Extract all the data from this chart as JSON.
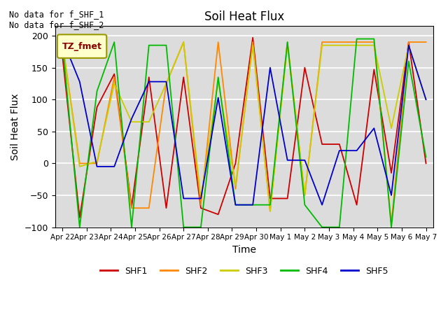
{
  "title": "Soil Heat Flux",
  "xlabel": "Time",
  "ylabel": "Soil Heat Flux",
  "ylim": [
    -100,
    215
  ],
  "yticks": [
    -100,
    -50,
    0,
    50,
    100,
    150,
    200
  ],
  "background_color": "#dcdcdc",
  "annotation_text": "No data for f_SHF_1\nNo data for f_SHF_2",
  "legend_label": "TZ_fmet",
  "series_labels": [
    "SHF1",
    "SHF2",
    "SHF3",
    "SHF4",
    "SHF5"
  ],
  "series_colors": [
    "#cc0000",
    "#ff8800",
    "#cccc00",
    "#00bb00",
    "#0000cc"
  ],
  "x_tick_labels": [
    "Apr 22",
    "Apr 23",
    "Apr 24",
    "Apr 25",
    "Apr 26",
    "Apr 27",
    "Apr 28",
    "Apr 29",
    "Apr 30",
    "May 1",
    "May 2",
    "May 3",
    "May 4",
    "May 5",
    "May 6",
    "May 7"
  ],
  "SHF1": [
    170,
    -85,
    88,
    140,
    -68,
    135,
    -70,
    135,
    -70,
    -80,
    0,
    197,
    -55,
    -55,
    150,
    30,
    30,
    -65,
    147,
    -15,
    190,
    0
  ],
  "SHF2": [
    190,
    0,
    0,
    135,
    -70,
    -70,
    125,
    190,
    -65,
    190,
    -40,
    190,
    -75,
    190,
    -50,
    190,
    190,
    190,
    190,
    -95,
    190,
    190
  ],
  "SHF3": [
    190,
    -5,
    3,
    125,
    65,
    65,
    125,
    190,
    -55,
    130,
    -35,
    185,
    -75,
    185,
    -50,
    185,
    185,
    185,
    185,
    55,
    185,
    100
  ],
  "SHF4": [
    190,
    -100,
    113,
    190,
    -100,
    185,
    185,
    -100,
    -100,
    135,
    -65,
    -65,
    -65,
    190,
    -65,
    -100,
    -100,
    195,
    195,
    -100,
    160,
    10
  ],
  "SHF5": [
    195,
    128,
    -5,
    -5,
    70,
    128,
    128,
    -55,
    -55,
    103,
    -65,
    -65,
    150,
    5,
    5,
    -65,
    20,
    20,
    55,
    -50,
    185,
    100
  ]
}
